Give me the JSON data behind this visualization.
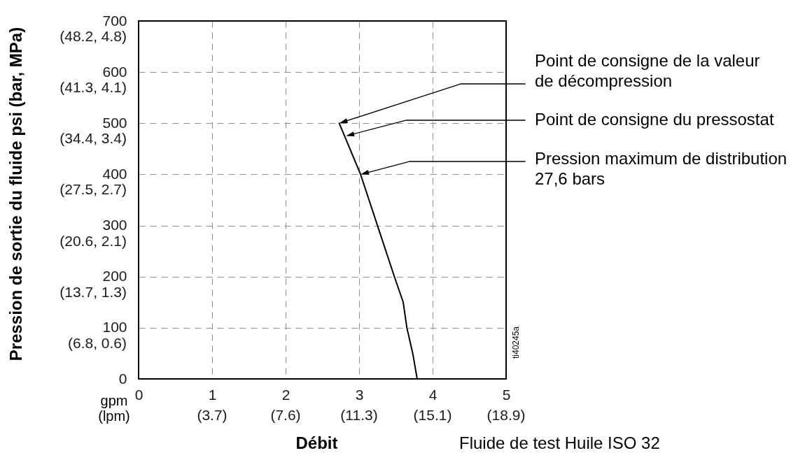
{
  "chart_data": {
    "type": "line",
    "xlabel": "Débit",
    "ylabel": "Pression de sortie du fluide psi (bar, MPa)",
    "x": [
      3.79,
      3.73,
      3.65,
      3.6,
      3.48,
      3.25,
      3.02,
      2.73
    ],
    "series": [
      {
        "color": "#000000",
        "values": [
          0,
          50,
          100,
          150,
          200,
          300,
          400,
          500
        ]
      }
    ],
    "xlim": [
      0,
      5
    ],
    "xticks": [
      0,
      1,
      2,
      3,
      4,
      5
    ],
    "ylim": [
      0,
      700
    ],
    "yticks": [
      0,
      100,
      200,
      300,
      400,
      500,
      600,
      700
    ],
    "grid": true,
    "annotations": [
      "Point de consigne de la valeur de décompression",
      "Point de consigne du pressostat",
      "Pression maximum de distribution 27,6 bars",
      "gpm (lpm)",
      "Fluide de test Huile ISO 32",
      "ti40245a",
      "(6.8, 0.6)",
      "(13.7, 1.3)",
      "(20.6, 2.1)",
      "(27.5, 2.7)",
      "(34.4, 3.4)",
      "(41.3, 4.1)",
      "(48.2, 4.8)",
      "(3.7)",
      "(7.6)",
      "(11.3)",
      "(15.1)",
      "(18.9)"
    ]
  }
}
